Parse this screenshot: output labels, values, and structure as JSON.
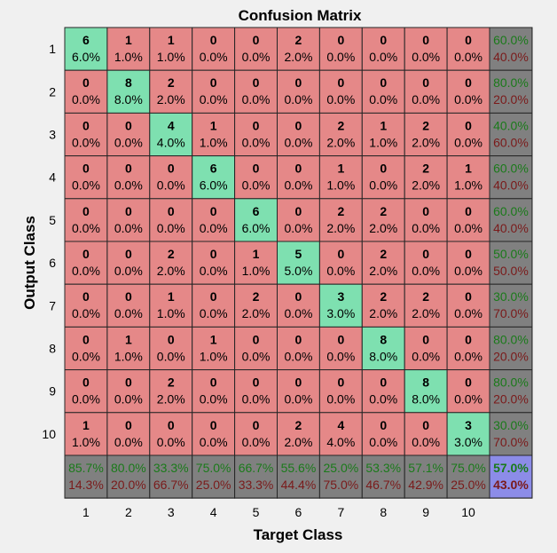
{
  "chart_data": {
    "type": "heatmap",
    "title": "Confusion Matrix",
    "xlabel": "Target Class",
    "ylabel": "Output Class",
    "x_ticks": [
      "1",
      "2",
      "3",
      "4",
      "5",
      "6",
      "7",
      "8",
      "9",
      "10"
    ],
    "y_ticks": [
      "1",
      "2",
      "3",
      "4",
      "5",
      "6",
      "7",
      "8",
      "9",
      "10"
    ],
    "matrix": [
      [
        6,
        1,
        1,
        0,
        0,
        2,
        0,
        0,
        0,
        0
      ],
      [
        0,
        8,
        2,
        0,
        0,
        0,
        0,
        0,
        0,
        0
      ],
      [
        0,
        0,
        4,
        1,
        0,
        0,
        2,
        1,
        2,
        0
      ],
      [
        0,
        0,
        0,
        6,
        0,
        0,
        1,
        0,
        2,
        1
      ],
      [
        0,
        0,
        0,
        0,
        6,
        0,
        2,
        2,
        0,
        0
      ],
      [
        0,
        0,
        2,
        0,
        1,
        5,
        0,
        2,
        0,
        0
      ],
      [
        0,
        0,
        1,
        0,
        2,
        0,
        3,
        2,
        2,
        0
      ],
      [
        0,
        1,
        0,
        1,
        0,
        0,
        0,
        8,
        0,
        0
      ],
      [
        0,
        0,
        2,
        0,
        0,
        0,
        0,
        0,
        8,
        0
      ],
      [
        1,
        0,
        0,
        0,
        0,
        2,
        4,
        0,
        0,
        3
      ]
    ],
    "cell_percents": [
      [
        "6.0%",
        "1.0%",
        "1.0%",
        "0.0%",
        "0.0%",
        "2.0%",
        "0.0%",
        "0.0%",
        "0.0%",
        "0.0%"
      ],
      [
        "0.0%",
        "8.0%",
        "2.0%",
        "0.0%",
        "0.0%",
        "0.0%",
        "0.0%",
        "0.0%",
        "0.0%",
        "0.0%"
      ],
      [
        "0.0%",
        "0.0%",
        "4.0%",
        "1.0%",
        "0.0%",
        "0.0%",
        "2.0%",
        "1.0%",
        "2.0%",
        "0.0%"
      ],
      [
        "0.0%",
        "0.0%",
        "0.0%",
        "6.0%",
        "0.0%",
        "0.0%",
        "1.0%",
        "0.0%",
        "2.0%",
        "1.0%"
      ],
      [
        "0.0%",
        "0.0%",
        "0.0%",
        "0.0%",
        "6.0%",
        "0.0%",
        "2.0%",
        "2.0%",
        "0.0%",
        "0.0%"
      ],
      [
        "0.0%",
        "0.0%",
        "2.0%",
        "0.0%",
        "1.0%",
        "5.0%",
        "0.0%",
        "2.0%",
        "0.0%",
        "0.0%"
      ],
      [
        "0.0%",
        "0.0%",
        "1.0%",
        "0.0%",
        "2.0%",
        "0.0%",
        "3.0%",
        "2.0%",
        "2.0%",
        "0.0%"
      ],
      [
        "0.0%",
        "1.0%",
        "0.0%",
        "1.0%",
        "0.0%",
        "0.0%",
        "0.0%",
        "8.0%",
        "0.0%",
        "0.0%"
      ],
      [
        "0.0%",
        "0.0%",
        "2.0%",
        "0.0%",
        "0.0%",
        "0.0%",
        "0.0%",
        "0.0%",
        "8.0%",
        "0.0%"
      ],
      [
        "1.0%",
        "0.0%",
        "0.0%",
        "0.0%",
        "0.0%",
        "2.0%",
        "4.0%",
        "0.0%",
        "0.0%",
        "3.0%"
      ]
    ],
    "row_summary": [
      {
        "correct": "60.0%",
        "incorrect": "40.0%"
      },
      {
        "correct": "80.0%",
        "incorrect": "20.0%"
      },
      {
        "correct": "40.0%",
        "incorrect": "60.0%"
      },
      {
        "correct": "60.0%",
        "incorrect": "40.0%"
      },
      {
        "correct": "60.0%",
        "incorrect": "40.0%"
      },
      {
        "correct": "50.0%",
        "incorrect": "50.0%"
      },
      {
        "correct": "30.0%",
        "incorrect": "70.0%"
      },
      {
        "correct": "80.0%",
        "incorrect": "20.0%"
      },
      {
        "correct": "80.0%",
        "incorrect": "20.0%"
      },
      {
        "correct": "30.0%",
        "incorrect": "70.0%"
      }
    ],
    "col_summary": [
      {
        "correct": "85.7%",
        "incorrect": "14.3%"
      },
      {
        "correct": "80.0%",
        "incorrect": "20.0%"
      },
      {
        "correct": "33.3%",
        "incorrect": "66.7%"
      },
      {
        "correct": "75.0%",
        "incorrect": "25.0%"
      },
      {
        "correct": "66.7%",
        "incorrect": "33.3%"
      },
      {
        "correct": "55.6%",
        "incorrect": "44.4%"
      },
      {
        "correct": "25.0%",
        "incorrect": "75.0%"
      },
      {
        "correct": "53.3%",
        "incorrect": "46.7%"
      },
      {
        "correct": "57.1%",
        "incorrect": "42.9%"
      },
      {
        "correct": "75.0%",
        "incorrect": "25.0%"
      }
    ],
    "overall": {
      "correct": "57.0%",
      "incorrect": "43.0%"
    },
    "colors": {
      "diagonal": "#7ee0b0",
      "off_diagonal": "#e58888",
      "summary": "#808080",
      "overall": "#8c8ce8",
      "correct_text": "#1a7a1a",
      "incorrect_text": "#7a1a1a",
      "overall_correct_text": "#1a7a1a",
      "overall_incorrect_text": "#7a1a1a",
      "background": "#f0f0f0"
    }
  }
}
